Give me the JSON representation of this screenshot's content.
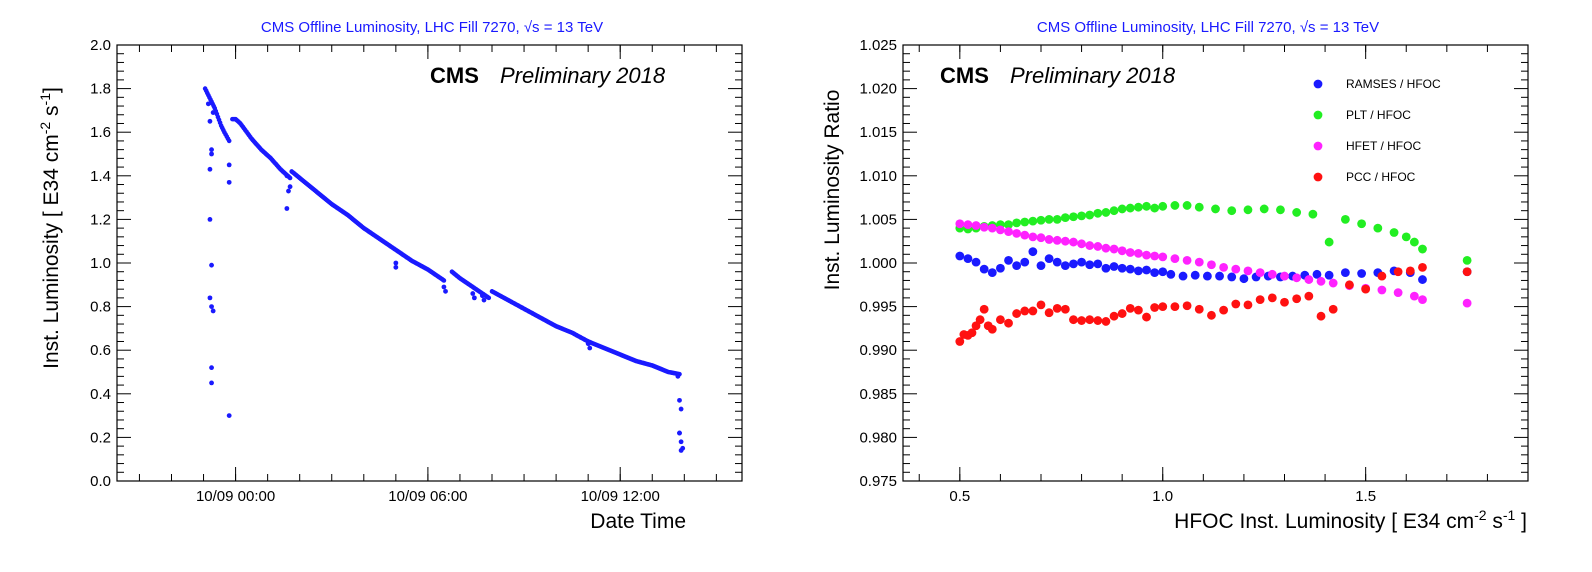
{
  "chart_data": [
    {
      "type": "scatter",
      "title": "CMS Offline Luminosity, LHC Fill 7270, √s = 13 TeV",
      "title_plain": "CMS Offline Luminosity, LHC Fill 7270,",
      "title_sqrt": "√s",
      "title_energy": "= 13 TeV",
      "cms_label": "CMS",
      "prelim_label": "Preliminary 2018",
      "xlabel": "Date Time",
      "ylabel_main": "Inst. Luminosity [ E34 cm",
      "ylabel_sup1": "-2",
      "ylabel_mid": " s",
      "ylabel_sup2": "-1",
      "ylabel_end": "]",
      "x_unit": "hours since 10/09 00:00",
      "xlim": [
        -3.7,
        15.8
      ],
      "ylim": [
        0.0,
        2.0
      ],
      "x_ticks": [
        0,
        6,
        12
      ],
      "x_tick_labels": [
        "10/09 00:00",
        "10/09 06:00",
        "10/09 12:00"
      ],
      "y_ticks": [
        0.0,
        0.2,
        0.4,
        0.6,
        0.8,
        1.0,
        1.2,
        1.4,
        1.6,
        1.8,
        2.0
      ],
      "y_tick_labels": [
        "0.0",
        "0.2",
        "0.4",
        "0.6",
        "0.8",
        "1.0",
        "1.2",
        "1.4",
        "1.6",
        "1.8",
        "2.0"
      ],
      "series": [
        {
          "color": "#1a1aff",
          "segments": [
            {
              "x": [
                -0.95,
                -0.85,
                -0.75,
                -0.65,
                -0.55,
                -0.45,
                -0.35,
                -0.2
              ],
              "y": [
                1.8,
                1.77,
                1.74,
                1.71,
                1.67,
                1.63,
                1.6,
                1.56
              ]
            },
            {
              "x": [
                -0.1,
                0.0,
                0.15,
                0.3,
                0.5,
                0.8,
                1.1,
                1.4,
                1.7
              ],
              "y": [
                1.66,
                1.66,
                1.64,
                1.61,
                1.57,
                1.52,
                1.48,
                1.43,
                1.39
              ]
            },
            {
              "x": [
                1.75,
                2.0,
                2.5,
                3.0,
                3.5,
                4.0,
                4.5,
                5.0,
                5.5,
                6.0,
                6.5
              ],
              "y": [
                1.42,
                1.39,
                1.33,
                1.27,
                1.22,
                1.16,
                1.11,
                1.06,
                1.01,
                0.97,
                0.92
              ]
            },
            {
              "x": [
                6.75,
                7.0,
                7.3,
                7.6,
                7.9
              ],
              "y": [
                0.96,
                0.93,
                0.9,
                0.87,
                0.84
              ]
            },
            {
              "x": [
                8.0,
                8.5,
                9.0,
                9.5,
                10.0,
                10.5,
                11.0,
                11.5,
                12.0,
                12.5,
                13.0,
                13.5,
                13.85
              ],
              "y": [
                0.87,
                0.83,
                0.79,
                0.75,
                0.71,
                0.68,
                0.64,
                0.61,
                0.58,
                0.55,
                0.53,
                0.5,
                0.49
              ]
            }
          ],
          "outliers": {
            "x": [
              -0.85,
              -0.8,
              -0.75,
              -0.8,
              -0.75,
              -0.8,
              -0.7,
              -0.75,
              -0.8,
              -0.75,
              -0.7,
              -0.75,
              -0.75,
              -0.2,
              -0.2,
              -0.2,
              1.6,
              1.65,
              1.7,
              1.6,
              5.0,
              5.0,
              6.5,
              6.55,
              7.4,
              7.45,
              7.7,
              7.75,
              11.0,
              11.05,
              13.8,
              13.85,
              13.9,
              13.85,
              13.9,
              13.95,
              13.85,
              13.9
            ],
            "y": [
              1.73,
              1.65,
              1.52,
              1.43,
              1.5,
              1.2,
              1.69,
              0.99,
              0.84,
              0.8,
              0.78,
              0.52,
              0.45,
              0.3,
              1.45,
              1.37,
              1.4,
              1.33,
              1.35,
              1.25,
              1.0,
              0.98,
              0.89,
              0.87,
              0.86,
              0.84,
              0.85,
              0.83,
              0.63,
              0.61,
              0.48,
              0.37,
              0.33,
              0.22,
              0.18,
              0.15,
              0.22,
              0.14
            ]
          }
        }
      ]
    },
    {
      "type": "scatter",
      "title": "CMS Offline Luminosity, LHC Fill 7270, √s = 13 TeV",
      "title_plain": "CMS Offline Luminosity, LHC Fill 7270,",
      "title_sqrt": "√s",
      "title_energy": "= 13 TeV",
      "cms_label": "CMS",
      "prelim_label": "Preliminary 2018",
      "xlabel_main": "HFOC Inst. Luminosity [ E34  cm",
      "xlabel_sup1": "-2",
      "xlabel_mid": " s",
      "xlabel_sup2": "-1",
      "xlabel_end": " ]",
      "ylabel": "Inst. Luminosity Ratio",
      "xlim": [
        0.36,
        1.9
      ],
      "ylim": [
        0.975,
        1.025
      ],
      "x_ticks": [
        0.5,
        1.0,
        1.5
      ],
      "x_tick_labels": [
        "0.5",
        "1.0",
        "1.5"
      ],
      "y_ticks": [
        0.975,
        0.98,
        0.985,
        0.99,
        0.995,
        1.0,
        1.005,
        1.01,
        1.015,
        1.02,
        1.025
      ],
      "y_tick_labels": [
        "0.975",
        "0.980",
        "0.985",
        "0.990",
        "0.995",
        "1.000",
        "1.005",
        "1.010",
        "1.015",
        "1.020",
        "1.025"
      ],
      "legend_position": "top-right",
      "series": [
        {
          "name": "RAMSES / HFOC",
          "color": "#1a1aff",
          "x": [
            0.5,
            0.52,
            0.54,
            0.56,
            0.58,
            0.6,
            0.62,
            0.64,
            0.66,
            0.68,
            0.7,
            0.72,
            0.74,
            0.76,
            0.78,
            0.8,
            0.82,
            0.84,
            0.86,
            0.88,
            0.9,
            0.92,
            0.94,
            0.96,
            0.98,
            1.0,
            1.02,
            1.05,
            1.08,
            1.11,
            1.14,
            1.17,
            1.2,
            1.23,
            1.26,
            1.29,
            1.32,
            1.35,
            1.38,
            1.41,
            1.45,
            1.49,
            1.53,
            1.57,
            1.61,
            1.64,
            1.75
          ],
          "y": [
            1.0008,
            1.0005,
            1.0001,
            0.9993,
            0.9989,
            0.9994,
            1.0003,
            0.9997,
            1.0001,
            1.0013,
            0.9997,
            1.0005,
            1.0001,
            0.9997,
            0.9999,
            1.0001,
            0.9998,
            0.9999,
            0.9994,
            0.9996,
            0.9994,
            0.9993,
            0.9991,
            0.9992,
            0.9989,
            0.999,
            0.9987,
            0.9985,
            0.9986,
            0.9985,
            0.9985,
            0.9984,
            0.9982,
            0.9984,
            0.9985,
            0.9984,
            0.9985,
            0.9986,
            0.9987,
            0.9986,
            0.9989,
            0.9988,
            0.9989,
            0.9991,
            0.9989,
            0.9981,
            0.999
          ]
        },
        {
          "name": "PLT / HFOC",
          "color": "#22ee22",
          "x": [
            0.5,
            0.52,
            0.54,
            0.56,
            0.58,
            0.6,
            0.62,
            0.64,
            0.66,
            0.68,
            0.7,
            0.72,
            0.74,
            0.76,
            0.78,
            0.8,
            0.82,
            0.84,
            0.86,
            0.88,
            0.9,
            0.92,
            0.94,
            0.96,
            0.98,
            1.0,
            1.03,
            1.06,
            1.09,
            1.13,
            1.17,
            1.21,
            1.25,
            1.29,
            1.33,
            1.37,
            1.41,
            1.45,
            1.49,
            1.53,
            1.57,
            1.6,
            1.62,
            1.64,
            1.75
          ],
          "y": [
            1.004,
            1.0039,
            1.004,
            1.0042,
            1.0043,
            1.0044,
            1.0044,
            1.0046,
            1.0047,
            1.0048,
            1.0049,
            1.005,
            1.005,
            1.0052,
            1.0053,
            1.0054,
            1.0055,
            1.0057,
            1.0058,
            1.006,
            1.0062,
            1.0063,
            1.0064,
            1.0065,
            1.0063,
            1.0065,
            1.0066,
            1.0066,
            1.0064,
            1.0062,
            1.006,
            1.0061,
            1.0062,
            1.0061,
            1.0058,
            1.0056,
            1.0024,
            1.005,
            1.0045,
            1.004,
            1.0035,
            1.003,
            1.0024,
            1.0016,
            1.0003
          ]
        },
        {
          "name": "HFET / HFOC",
          "color": "#ff22ff",
          "x": [
            0.5,
            0.52,
            0.54,
            0.56,
            0.58,
            0.6,
            0.62,
            0.64,
            0.66,
            0.68,
            0.7,
            0.72,
            0.74,
            0.76,
            0.78,
            0.8,
            0.82,
            0.84,
            0.86,
            0.88,
            0.9,
            0.92,
            0.94,
            0.96,
            0.98,
            1.0,
            1.03,
            1.06,
            1.09,
            1.12,
            1.15,
            1.18,
            1.21,
            1.24,
            1.27,
            1.3,
            1.33,
            1.36,
            1.39,
            1.42,
            1.46,
            1.5,
            1.54,
            1.58,
            1.62,
            1.64,
            1.75
          ],
          "y": [
            1.0045,
            1.0044,
            1.0043,
            1.0041,
            1.004,
            1.0038,
            1.0036,
            1.0034,
            1.0032,
            1.003,
            1.0029,
            1.0027,
            1.0026,
            1.0025,
            1.0024,
            1.0022,
            1.002,
            1.0019,
            1.0017,
            1.0016,
            1.0014,
            1.0012,
            1.0011,
            1.0009,
            1.0008,
            1.0007,
            1.0005,
            1.0003,
            1.0001,
            0.9998,
            0.9995,
            0.9993,
            0.9991,
            0.9989,
            0.9987,
            0.9985,
            0.9983,
            0.9981,
            0.9979,
            0.9977,
            0.9974,
            0.9971,
            0.9969,
            0.9966,
            0.9962,
            0.9958,
            0.9954
          ]
        },
        {
          "name": "PCC / HFOC",
          "color": "#ff1111",
          "x": [
            0.5,
            0.51,
            0.52,
            0.53,
            0.54,
            0.55,
            0.56,
            0.57,
            0.58,
            0.6,
            0.62,
            0.64,
            0.66,
            0.68,
            0.7,
            0.72,
            0.74,
            0.76,
            0.78,
            0.8,
            0.82,
            0.84,
            0.86,
            0.88,
            0.9,
            0.92,
            0.94,
            0.96,
            0.98,
            1.0,
            1.03,
            1.06,
            1.09,
            1.12,
            1.15,
            1.18,
            1.21,
            1.24,
            1.27,
            1.3,
            1.33,
            1.36,
            1.39,
            1.42,
            1.46,
            1.5,
            1.54,
            1.58,
            1.61,
            1.64,
            1.75
          ],
          "y": [
            0.991,
            0.9918,
            0.9917,
            0.992,
            0.9928,
            0.9935,
            0.9947,
            0.9928,
            0.9924,
            0.9935,
            0.9931,
            0.9942,
            0.9945,
            0.9945,
            0.9952,
            0.9943,
            0.9948,
            0.9947,
            0.9935,
            0.9934,
            0.9935,
            0.9934,
            0.9933,
            0.9939,
            0.9942,
            0.9948,
            0.9946,
            0.9938,
            0.9949,
            0.995,
            0.995,
            0.9951,
            0.9947,
            0.994,
            0.9946,
            0.9953,
            0.9952,
            0.9958,
            0.996,
            0.9955,
            0.9959,
            0.9962,
            0.9939,
            0.9947,
            0.9975,
            0.997,
            0.9985,
            0.999,
            0.9991,
            0.9995,
            0.999
          ]
        }
      ]
    }
  ]
}
